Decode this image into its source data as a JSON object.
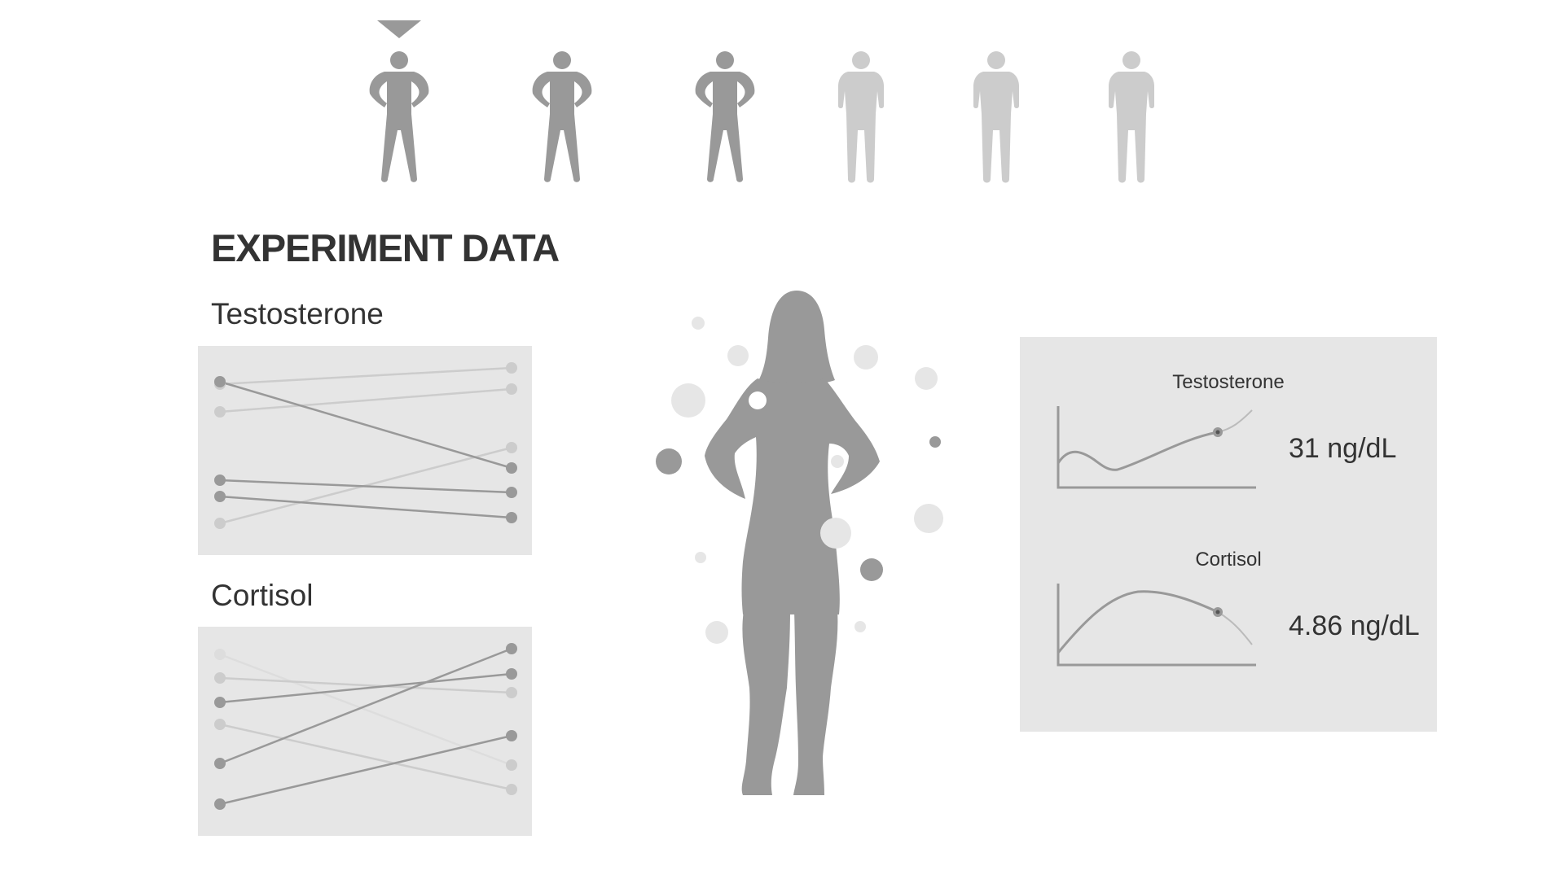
{
  "heading": "EXPERIMENT DATA",
  "sections": {
    "testosterone_label": "Testosterone",
    "cortisol_label": "Cortisol"
  },
  "participants": {
    "count": 6,
    "selected_index": 0,
    "states": [
      "power-pose",
      "power-pose",
      "power-pose",
      "neutral",
      "neutral",
      "neutral"
    ]
  },
  "readouts": {
    "testosterone": {
      "title": "Testosterone",
      "value": "31 ng/dL"
    },
    "cortisol": {
      "title": "Cortisol",
      "value": "4.86 ng/dL"
    }
  },
  "colors": {
    "dark": "#999999",
    "light": "#cccccc",
    "panel": "#e6e6e6",
    "text": "#333333"
  }
}
